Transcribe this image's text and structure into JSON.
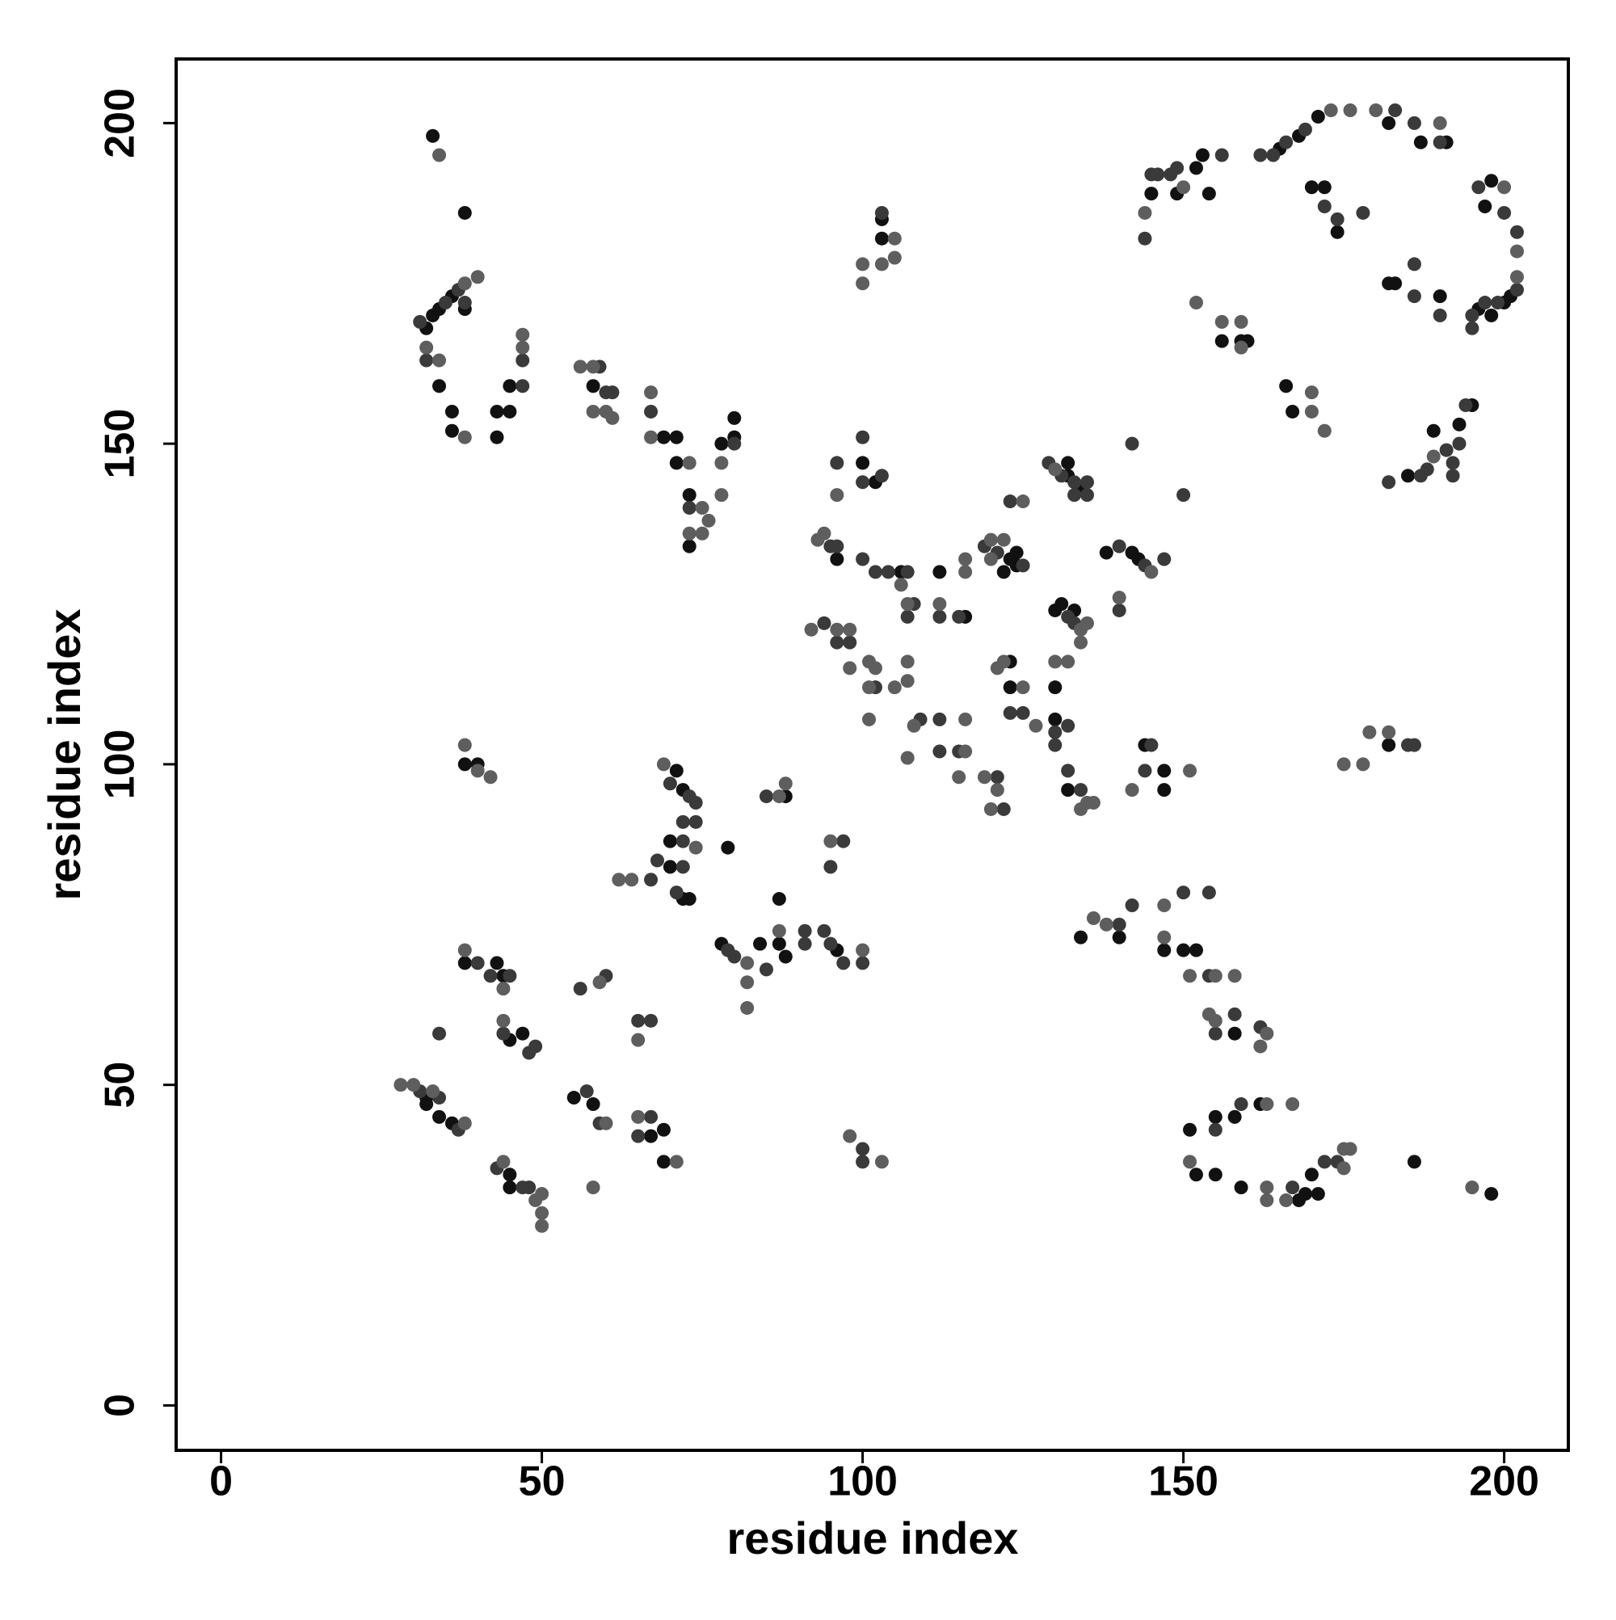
{
  "chart_data": {
    "type": "scatter",
    "xlabel": "residue index",
    "ylabel": "residue index",
    "xlim": [
      -7,
      210
    ],
    "ylim": [
      -7,
      210
    ],
    "xticks": [
      0,
      50,
      100,
      150,
      200
    ],
    "yticks": [
      0,
      50,
      100,
      150,
      200
    ],
    "grid": false,
    "series": [
      {
        "color": "#111111",
        "x": [
          33,
          38,
          36,
          34,
          33,
          32,
          34,
          36,
          36,
          43,
          43,
          45,
          45,
          38,
          58,
          69,
          71,
          71,
          73,
          73,
          78,
          80,
          80,
          96,
          106,
          100,
          102,
          103,
          103,
          112,
          123,
          124,
          124,
          122,
          116,
          123,
          123,
          130,
          130,
          132,
          130,
          131,
          133,
          132,
          132,
          134,
          138,
          142,
          143,
          144,
          147,
          147,
          145,
          149,
          152,
          153,
          154,
          156,
          159,
          160,
          165,
          168,
          171,
          182,
          187,
          191,
          170,
          172,
          174,
          198,
          197,
          201,
          196,
          198,
          200,
          182,
          183,
          190,
          166,
          167,
          185,
          189,
          193,
          195,
          182,
          32,
          32,
          34,
          36,
          38,
          43,
          44,
          45,
          47,
          45,
          45,
          38,
          40,
          55,
          58,
          67,
          69,
          69,
          70,
          72,
          73,
          70,
          71,
          72,
          79,
          78,
          84,
          87,
          88,
          87,
          88,
          96,
          134,
          140,
          147,
          150,
          152,
          158,
          151,
          155,
          158,
          162,
          152,
          155,
          159,
          168,
          169,
          170,
          171,
          186,
          198
        ],
        "y": [
          198,
          186,
          173,
          171,
          170,
          168,
          159,
          155,
          152,
          151,
          155,
          155,
          159,
          171,
          159,
          151,
          151,
          147,
          142,
          134,
          150,
          154,
          151,
          132,
          130,
          147,
          144,
          185,
          182,
          130,
          132,
          133,
          131,
          130,
          123,
          116,
          112,
          107,
          112,
          96,
          124,
          125,
          124,
          147,
          145,
          143,
          133,
          133,
          132,
          103,
          99,
          96,
          189,
          189,
          193,
          195,
          189,
          166,
          166,
          166,
          196,
          198,
          201,
          200,
          197,
          197,
          190,
          190,
          183,
          191,
          187,
          173,
          171,
          170,
          172,
          175,
          175,
          173,
          159,
          155,
          145,
          152,
          153,
          156,
          103,
          48,
          47,
          45,
          44,
          69,
          69,
          67,
          57,
          58,
          36,
          34,
          100,
          100,
          48,
          47,
          42,
          43,
          38,
          84,
          79,
          79,
          88,
          99,
          96,
          87,
          72,
          72,
          72,
          70,
          79,
          95,
          71,
          73,
          73,
          71,
          71,
          71,
          58,
          43,
          45,
          45,
          47,
          36,
          36,
          34,
          32,
          33,
          36,
          33,
          38,
          33
        ]
      },
      {
        "color": "#3a3a3a",
        "x": [
          37,
          35,
          31,
          32,
          47,
          47,
          38,
          59,
          60,
          61,
          67,
          73,
          80,
          95,
          96,
          100,
          102,
          104,
          107,
          108,
          107,
          94,
          96,
          98,
          102,
          96,
          100,
          100,
          103,
          103,
          119,
          121,
          125,
          112,
          115,
          109,
          112,
          112,
          115,
          121,
          122,
          123,
          125,
          130,
          130,
          132,
          132,
          134,
          132,
          133,
          129,
          131,
          133,
          133,
          135,
          135,
          123,
          140,
          144,
          140,
          142,
          147,
          150,
          145,
          144,
          145,
          146,
          148,
          149,
          156,
          144,
          162,
          164,
          166,
          169,
          183,
          186,
          190,
          172,
          174,
          178,
          196,
          200,
          202,
          202,
          199,
          197,
          195,
          195,
          186,
          186,
          190,
          182,
          187,
          188,
          191,
          192,
          192,
          194,
          193,
          185,
          186,
          31,
          34,
          37,
          34,
          40,
          42,
          45,
          44,
          48,
          49,
          43,
          47,
          48,
          57,
          59,
          56,
          60,
          65,
          67,
          65,
          67,
          67,
          68,
          72,
          71,
          72,
          72,
          74,
          70,
          73,
          74,
          79,
          80,
          85,
          91,
          91,
          85,
          94,
          95,
          97,
          100,
          97,
          95,
          100,
          100,
          140,
          142,
          150,
          154,
          154,
          155,
          158,
          162,
          155,
          159,
          167,
          172,
          174
        ],
        "y": [
          174,
          172,
          169,
          163,
          159,
          163,
          172,
          162,
          158,
          158,
          155,
          140,
          150,
          134,
          134,
          132,
          130,
          130,
          130,
          125,
          123,
          122,
          119,
          119,
          112,
          147,
          151,
          144,
          145,
          186,
          134,
          133,
          131,
          123,
          123,
          107,
          107,
          102,
          102,
          98,
          93,
          108,
          108,
          105,
          103,
          106,
          99,
          96,
          123,
          122,
          147,
          145,
          144,
          142,
          144,
          142,
          141,
          134,
          131,
          124,
          150,
          132,
          142,
          103,
          99,
          192,
          192,
          192,
          193,
          195,
          182,
          195,
          195,
          197,
          199,
          202,
          200,
          197,
          187,
          185,
          186,
          190,
          186,
          183,
          174,
          172,
          172,
          170,
          168,
          178,
          173,
          170,
          144,
          145,
          146,
          149,
          147,
          145,
          156,
          150,
          103,
          103,
          49,
          48,
          43,
          58,
          69,
          67,
          67,
          58,
          55,
          56,
          37,
          34,
          34,
          49,
          44,
          65,
          67,
          42,
          45,
          60,
          60,
          82,
          85,
          84,
          80,
          88,
          91,
          91,
          97,
          95,
          94,
          71,
          70,
          68,
          74,
          72,
          95,
          74,
          72,
          69,
          69,
          88,
          84,
          40,
          38,
          75,
          78,
          80,
          67,
          80,
          58,
          61,
          59,
          43,
          47,
          34,
          38,
          38
        ]
      },
      {
        "color": "#5e5e5e",
        "x": [
          34,
          40,
          38,
          32,
          34,
          38,
          47,
          47,
          56,
          58,
          58,
          60,
          61,
          67,
          67,
          73,
          75,
          73,
          75,
          76,
          78,
          78,
          93,
          94,
          106,
          107,
          92,
          96,
          98,
          98,
          101,
          102,
          101,
          105,
          107,
          107,
          101,
          107,
          96,
          105,
          105,
          103,
          100,
          100,
          116,
          116,
          120,
          122,
          120,
          112,
          108,
          116,
          116,
          115,
          119,
          120,
          121,
          122,
          121,
          125,
          127,
          130,
          132,
          134,
          135,
          136,
          134,
          135,
          134,
          130,
          125,
          145,
          140,
          142,
          151,
          144,
          150,
          152,
          156,
          159,
          159,
          173,
          176,
          180,
          190,
          200,
          202,
          202,
          170,
          170,
          172,
          189,
          175,
          178,
          179,
          182,
          28,
          30,
          33,
          38,
          38,
          44,
          44,
          44,
          49,
          50,
          50,
          50,
          38,
          40,
          42,
          60,
          59,
          58,
          65,
          71,
          65,
          62,
          64,
          74,
          69,
          82,
          82,
          82,
          87,
          87,
          88,
          100,
          95,
          98,
          103,
          136,
          138,
          147,
          147,
          151,
          155,
          158,
          154,
          155,
          163,
          162,
          163,
          167,
          151,
          163,
          163,
          166,
          175,
          175,
          176,
          195
        ],
        "y": [
          195,
          176,
          175,
          165,
          163,
          151,
          165,
          167,
          162,
          162,
          155,
          155,
          154,
          158,
          151,
          147,
          140,
          136,
          136,
          138,
          142,
          147,
          135,
          136,
          128,
          125,
          121,
          121,
          121,
          115,
          116,
          115,
          112,
          112,
          113,
          116,
          107,
          101,
          142,
          182,
          179,
          178,
          178,
          175,
          132,
          130,
          135,
          135,
          132,
          125,
          106,
          107,
          102,
          98,
          98,
          93,
          96,
          116,
          115,
          112,
          106,
          116,
          116,
          93,
          94,
          94,
          121,
          122,
          119,
          146,
          141,
          130,
          126,
          96,
          99,
          186,
          190,
          172,
          169,
          169,
          165,
          202,
          202,
          202,
          200,
          190,
          180,
          176,
          158,
          155,
          152,
          148,
          100,
          100,
          105,
          105,
          50,
          50,
          49,
          44,
          71,
          65,
          60,
          38,
          32,
          33,
          30,
          28,
          103,
          99,
          98,
          44,
          66,
          34,
          45,
          38,
          57,
          82,
          82,
          87,
          100,
          69,
          66,
          62,
          74,
          95,
          97,
          71,
          88,
          42,
          38,
          76,
          75,
          78,
          73,
          67,
          67,
          67,
          61,
          60,
          58,
          56,
          47,
          47,
          38,
          34,
          32,
          32,
          37,
          40,
          40,
          34
        ]
      }
    ]
  }
}
